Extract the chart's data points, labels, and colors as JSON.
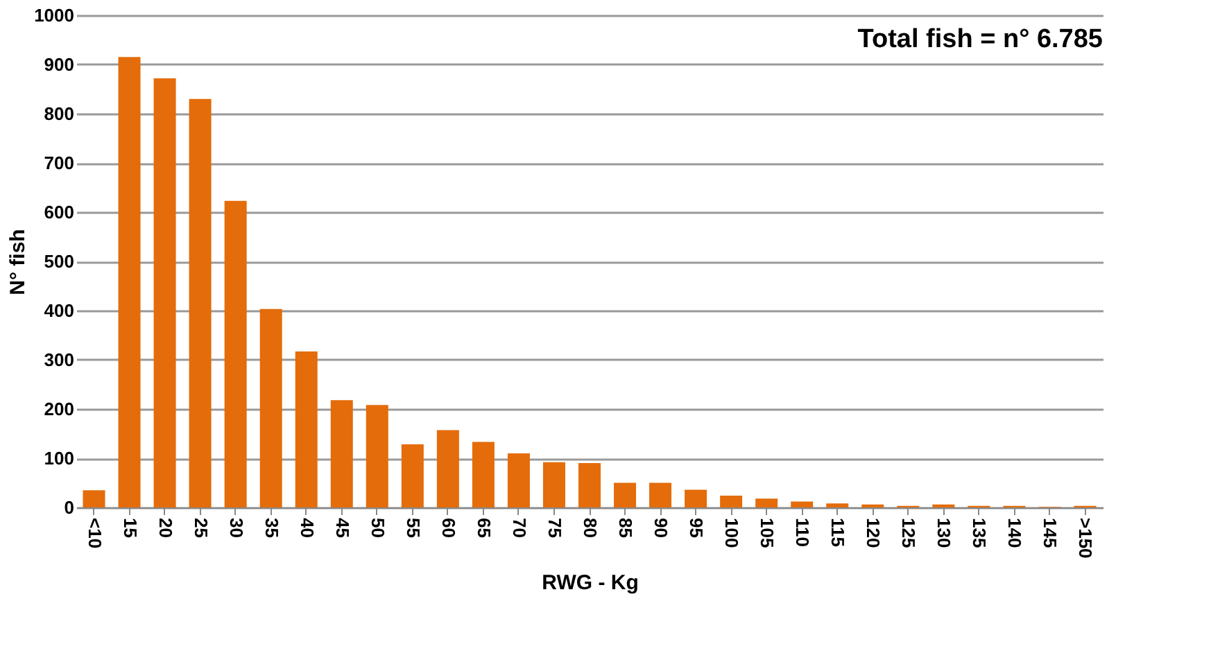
{
  "chart_data": {
    "type": "bar",
    "xlabel": "RWG - Kg",
    "ylabel": "N° fish",
    "categories": [
      "<10",
      "15",
      "20",
      "25",
      "30",
      "35",
      "40",
      "45",
      "50",
      "55",
      "60",
      "65",
      "70",
      "75",
      "80",
      "85",
      "90",
      "95",
      "100",
      "105",
      "110",
      "115",
      "120",
      "125",
      "130",
      "135",
      "140",
      "145",
      ">150"
    ],
    "values": [
      35,
      915,
      872,
      830,
      623,
      403,
      317,
      218,
      208,
      128,
      157,
      133,
      110,
      92,
      90,
      50,
      50,
      36,
      24,
      18,
      12,
      8,
      6,
      3,
      6,
      3,
      3,
      1,
      3
    ],
    "color": "#e46c0a",
    "ylim": [
      0,
      1000
    ],
    "yticks": [
      0,
      100,
      200,
      300,
      400,
      500,
      600,
      700,
      800,
      900,
      1000
    ],
    "grid": "y",
    "annotations": [
      "Total fish = n° 6.785"
    ]
  }
}
